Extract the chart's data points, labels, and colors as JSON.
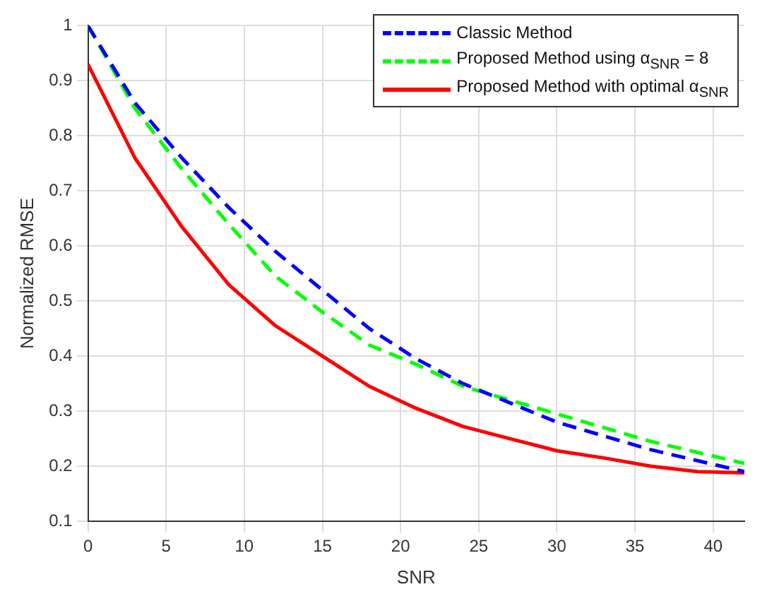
{
  "chart_data": {
    "type": "line",
    "xlabel": "SNR",
    "ylabel": "Normalized RMSE",
    "x": [
      0,
      3,
      6,
      9,
      12,
      15,
      18,
      21,
      24,
      27,
      30,
      33,
      36,
      39,
      42
    ],
    "series": [
      {
        "name": "Classic Method",
        "color": "#0000ff",
        "line_style": "dashed",
        "values": [
          1.0,
          0.86,
          0.76,
          0.67,
          0.59,
          0.52,
          0.45,
          0.395,
          0.35,
          0.315,
          0.28,
          0.255,
          0.23,
          0.21,
          0.19
        ]
      },
      {
        "name": "Proposed Method using α$_{SNR}$ = 8",
        "color": "#00ff00",
        "line_style": "dashed",
        "values": [
          1.0,
          0.85,
          0.74,
          0.64,
          0.545,
          0.48,
          0.42,
          0.385,
          0.345,
          0.32,
          0.295,
          0.27,
          0.245,
          0.225,
          0.205
        ]
      },
      {
        "name": "Proposed Method with optimal α$_{SNR}$",
        "color": "#ff0000",
        "line_style": "solid",
        "values": [
          0.93,
          0.76,
          0.635,
          0.53,
          0.455,
          0.4,
          0.345,
          0.305,
          0.272,
          0.25,
          0.228,
          0.215,
          0.2,
          0.19,
          0.188
        ]
      }
    ],
    "xlim": [
      0,
      42
    ],
    "xticks": [
      0,
      5,
      10,
      15,
      20,
      25,
      30,
      35,
      40
    ],
    "ylim": [
      0.1,
      1
    ],
    "yticks": [
      0.1,
      0.2,
      0.3,
      0.4,
      0.5,
      0.6,
      0.7,
      0.8,
      0.9,
      1
    ],
    "grid": true,
    "legend": "top right",
    "marker": "none"
  }
}
